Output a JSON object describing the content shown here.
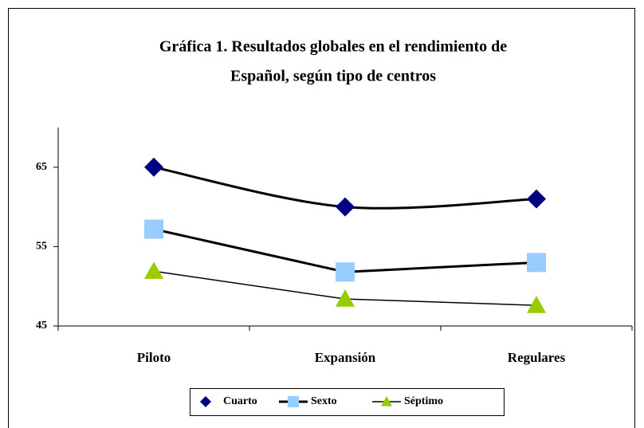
{
  "chart_data": {
    "type": "line",
    "title": [
      "Gráfica 1. Resultados globales en el rendimiento de",
      "Español, según tipo de centros"
    ],
    "categories": [
      "Piloto",
      "Expansión",
      "Regulares"
    ],
    "series": [
      {
        "name": "Cuarto",
        "color": "#000080",
        "marker": "diamond",
        "line_width": 3,
        "smooth": true,
        "values": [
          65,
          60,
          61
        ]
      },
      {
        "name": "Sexto",
        "color": "#99ccff",
        "marker": "square",
        "line_width": 3,
        "smooth": false,
        "values": [
          57.2,
          51.8,
          53
        ]
      },
      {
        "name": "Séptimo",
        "color": "#99cc00",
        "marker": "triangle",
        "line_width": 1.5,
        "smooth": false,
        "values": [
          51.9,
          48.4,
          47.6
        ]
      }
    ],
    "ylim": [
      45,
      70
    ],
    "yticks": [
      45,
      55,
      65
    ],
    "grid": false,
    "legend": "bottom"
  }
}
